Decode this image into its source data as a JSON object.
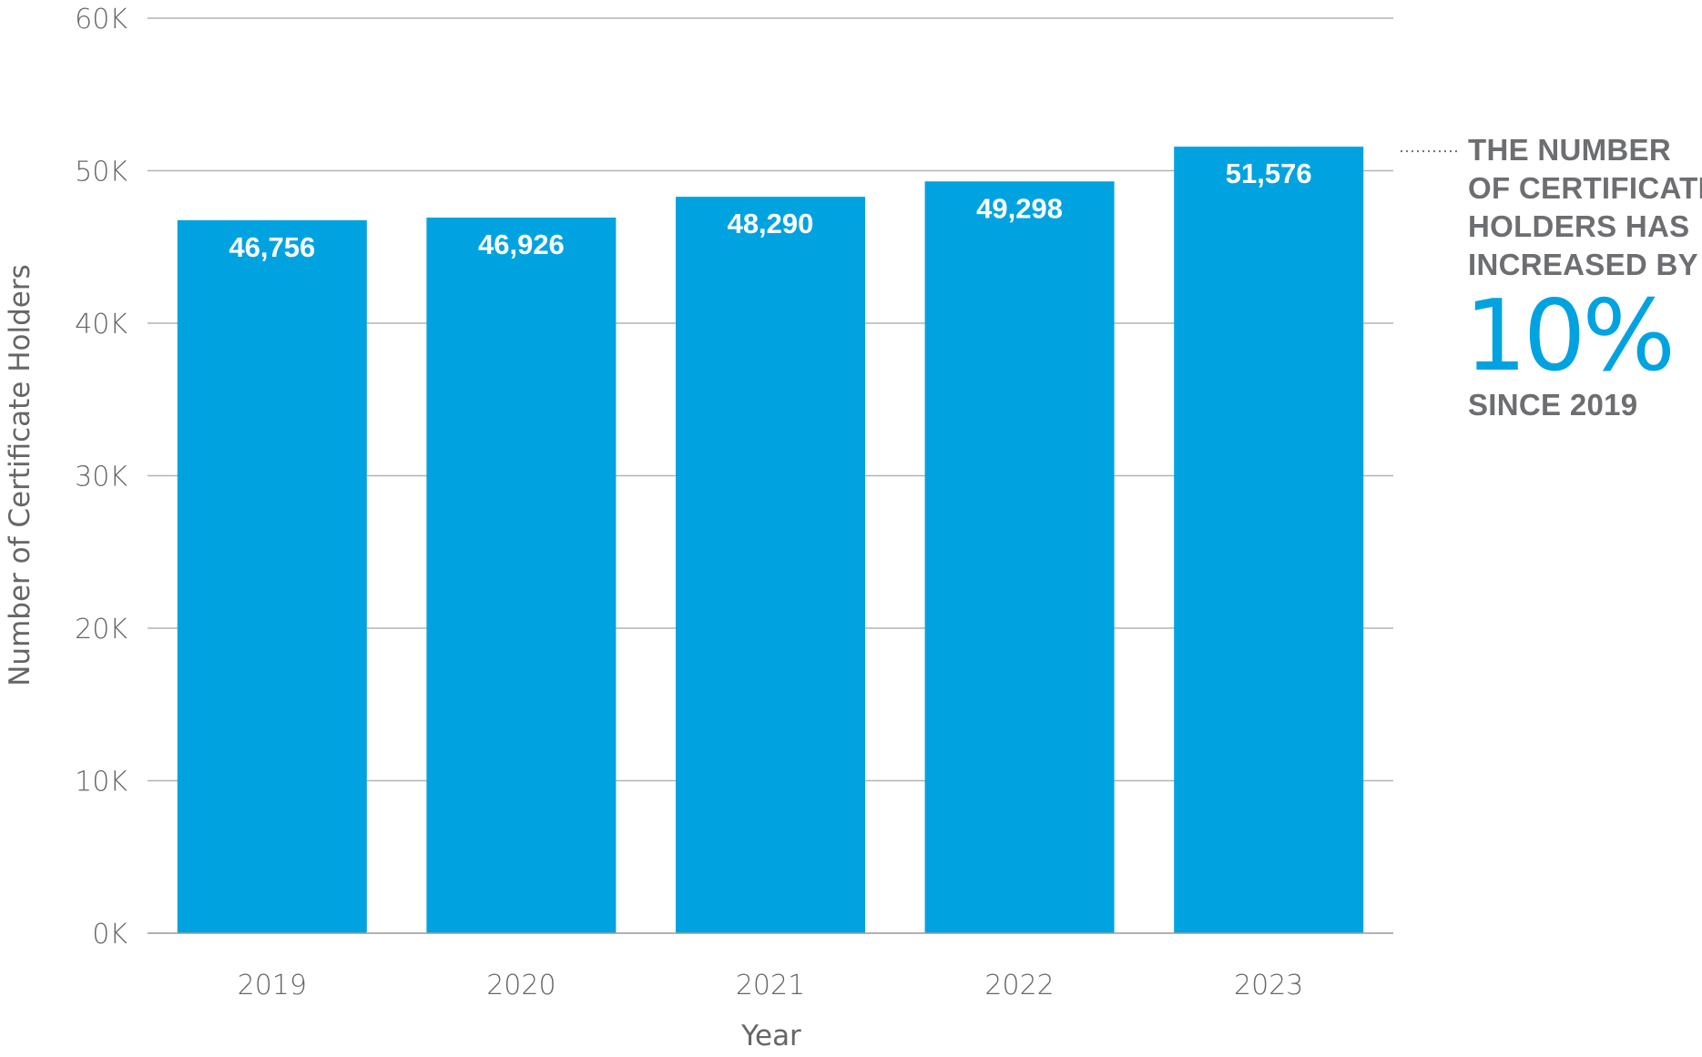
{
  "chart_data": {
    "type": "bar",
    "categories": [
      "2019",
      "2020",
      "2021",
      "2022",
      "2023"
    ],
    "values": [
      46756,
      46926,
      48290,
      49298,
      51576
    ],
    "value_labels": [
      "46,756",
      "46,926",
      "48,290",
      "49,298",
      "51,576"
    ],
    "xlabel": "Year",
    "ylabel": "Number of Certificate Holders",
    "ylim": [
      0,
      60000
    ],
    "y_ticks": [
      0,
      10000,
      20000,
      30000,
      40000,
      50000,
      60000
    ],
    "y_tick_labels": [
      "0K",
      "10K",
      "20K",
      "30K",
      "40K",
      "50K",
      "60K"
    ],
    "grid": true,
    "bar_color": "#00a3e0",
    "annotation": {
      "lines": [
        "THE NUMBER",
        "OF CERTIFICATE",
        "HOLDERS HAS",
        "INCREASED BY"
      ],
      "highlight": "10%",
      "after": "SINCE 2019",
      "highlight_color": "#00a3e0",
      "text_color": "#6d6e71"
    }
  }
}
